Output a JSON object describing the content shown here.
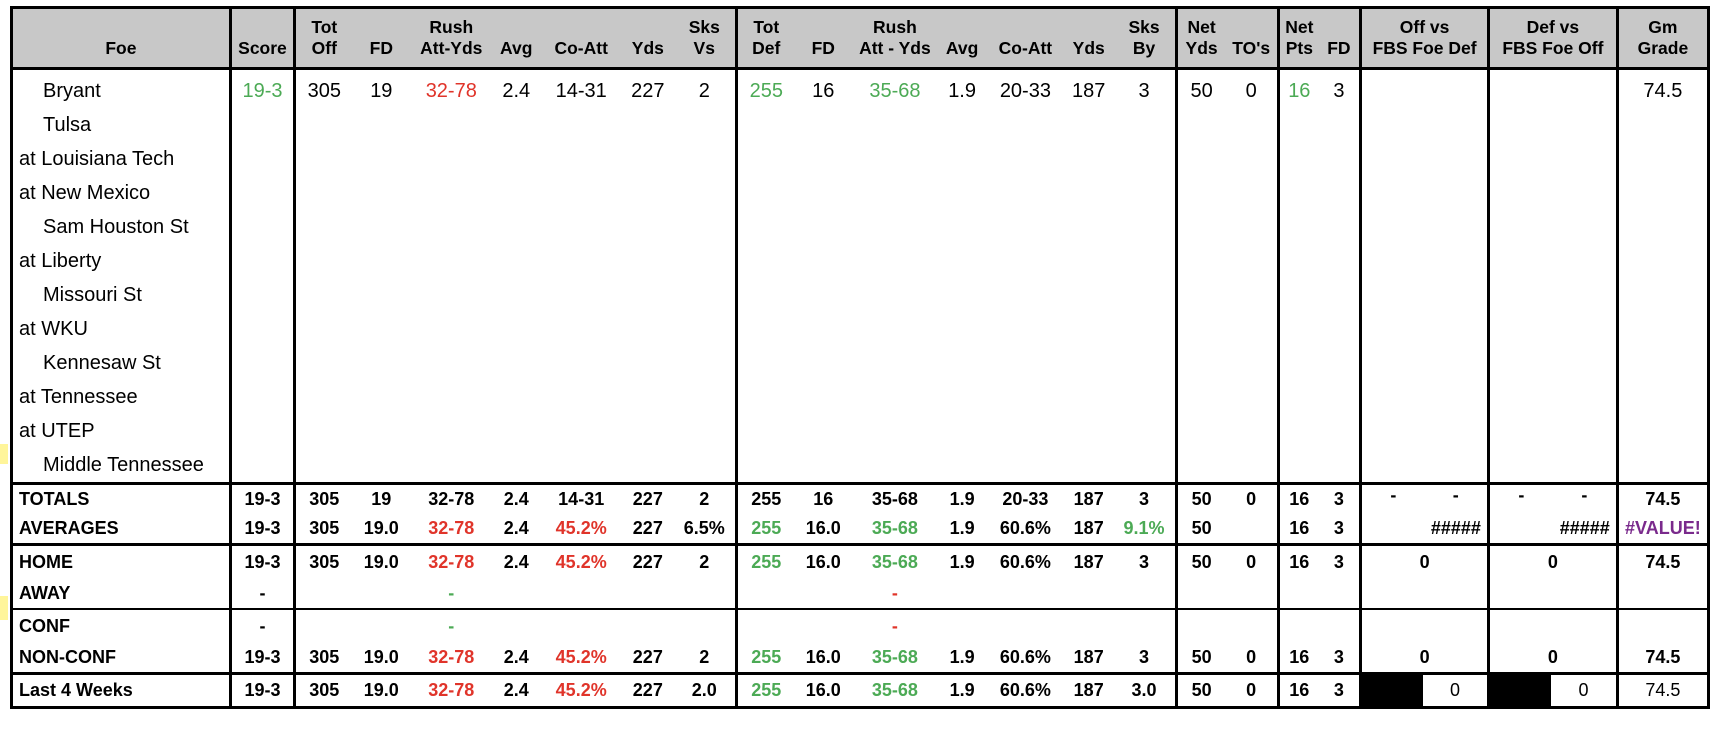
{
  "header": {
    "row1": [
      "",
      "",
      "Tot",
      "",
      "Rush",
      "",
      "",
      "",
      "Sks",
      "Tot",
      "",
      "Rush",
      "",
      "",
      "",
      "Sks",
      "Net",
      "",
      "Net",
      "",
      "Off vs",
      "Def vs",
      "Gm"
    ],
    "row2": [
      "Foe",
      "Score",
      "Off",
      "FD",
      "Att-Yds",
      "Avg",
      "Co-Att",
      "Yds",
      "Vs",
      "Def",
      "FD",
      "Att - Yds",
      "Avg",
      "Co-Att",
      "Yds",
      "By",
      "Yds",
      "TO's",
      "Pts",
      "FD",
      "FBS Foe Def",
      "FBS Foe Off",
      "Grade"
    ]
  },
  "games": [
    {
      "foe": "Bryant",
      "home": true,
      "score": "19-3",
      "tot_off": "305",
      "fd": "19",
      "rush": "32-78",
      "avg": "2.4",
      "co_att": "14-31",
      "yds": "227",
      "sks_vs": "2",
      "tot_def": "255",
      "dfd": "16",
      "drush": "35-68",
      "davg": "1.9",
      "dco_att": "20-33",
      "dyds": "187",
      "sks_by": "3",
      "net_yds": "50",
      "tos": "0",
      "net_pts": "16",
      "net_fd": "3",
      "gm_grade": "74.5"
    },
    {
      "foe": "Tulsa",
      "home": true
    },
    {
      "foe": "at Louisiana Tech",
      "home": false
    },
    {
      "foe": "at New Mexico",
      "home": false
    },
    {
      "foe": "Sam Houston St",
      "home": true
    },
    {
      "foe": "at Liberty",
      "home": false
    },
    {
      "foe": "Missouri St",
      "home": true
    },
    {
      "foe": "at WKU",
      "home": false
    },
    {
      "foe": "Kennesaw St",
      "home": true
    },
    {
      "foe": "at Tennessee",
      "home": false
    },
    {
      "foe": "at UTEP",
      "home": false
    },
    {
      "foe": "Middle Tennessee",
      "home": true
    }
  ],
  "totals": {
    "label": "TOTALS",
    "cells": [
      "19-3",
      "305",
      "19",
      "32-78",
      "2.4",
      "14-31",
      "227",
      "2",
      "255",
      "16",
      "35-68",
      "1.9",
      "20-33",
      "187",
      "3",
      "50",
      "0",
      "16",
      "3"
    ],
    "off_a": "-",
    "off_b": "-",
    "def_a": "-",
    "def_b": "-",
    "grade": "74.5"
  },
  "averages": {
    "label": "AVERAGES",
    "cells": [
      "19-3",
      "305",
      "19.0",
      "32-78",
      "2.4",
      "45.2%",
      "227",
      "6.5%",
      "255",
      "16.0",
      "35-68",
      "1.9",
      "60.6%",
      "187",
      "9.1%",
      "50",
      "",
      "16",
      "3"
    ],
    "off_vs": "#####",
    "def_vs": "#####",
    "grade": "#VALUE!"
  },
  "home": {
    "label": "HOME",
    "cells": [
      "19-3",
      "305",
      "19.0",
      "32-78",
      "2.4",
      "45.2%",
      "227",
      "2",
      "255",
      "16.0",
      "35-68",
      "1.9",
      "60.6%",
      "187",
      "3",
      "50",
      "0",
      "16",
      "3"
    ],
    "off_vs": "0",
    "def_vs": "0",
    "grade": "74.5"
  },
  "away": {
    "label": "AWAY",
    "score": "-",
    "rush": "-",
    "drush": "-"
  },
  "conf": {
    "label": "CONF",
    "score": "-",
    "rush": "-",
    "drush": "-"
  },
  "nonconf": {
    "label": "NON-CONF",
    "cells": [
      "19-3",
      "305",
      "19.0",
      "32-78",
      "2.4",
      "45.2%",
      "227",
      "2",
      "255",
      "16.0",
      "35-68",
      "1.9",
      "60.6%",
      "187",
      "3",
      "50",
      "0",
      "16",
      "3"
    ],
    "off_vs": "0",
    "def_vs": "0",
    "grade": "74.5"
  },
  "last4": {
    "label": "Last 4 Weeks",
    "cells": [
      "19-3",
      "305",
      "19.0",
      "32-78",
      "2.4",
      "45.2%",
      "227",
      "2.0",
      "255",
      "16.0",
      "35-68",
      "1.9",
      "60.6%",
      "187",
      "3.0",
      "50",
      "0",
      "16",
      "3"
    ],
    "off_vs": "0",
    "def_vs": "0",
    "grade": "74.5"
  },
  "colors": {
    "green": "#4caa55",
    "red": "#e0342a",
    "purple": "#7a2a8c",
    "header_bg": "#c8c8c8"
  }
}
